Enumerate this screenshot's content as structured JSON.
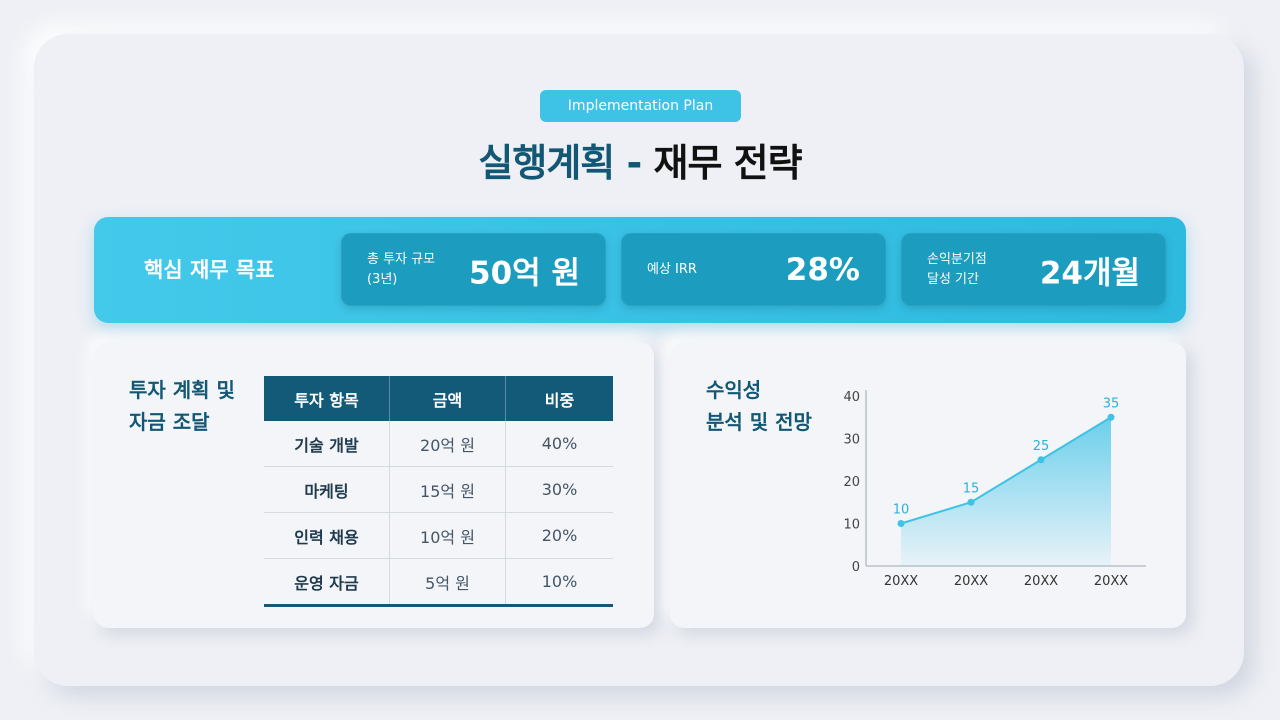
{
  "badge": "Implementation Plan",
  "title": {
    "part1": "실행계획 -",
    "part2": "재무 전략"
  },
  "kpi": {
    "heading": "핵심 재무 목표",
    "cards": [
      {
        "label_line1": "총 투자 규모",
        "label_line2": "(3년)",
        "value": "50억 원"
      },
      {
        "label_line1": "예상 IRR",
        "label_line2": "",
        "value": "28%"
      },
      {
        "label_line1": "손익분기점",
        "label_line2": "달성 기간",
        "value": "24개월"
      }
    ]
  },
  "investment": {
    "heading_line1": "투자 계획 및",
    "heading_line2": "자금 조달",
    "table": {
      "headers": [
        "투자 항목",
        "금액",
        "비중"
      ],
      "rows": [
        [
          "기술 개발",
          "20억 원",
          "40%"
        ],
        [
          "마케팅",
          "15억 원",
          "30%"
        ],
        [
          "인력 채용",
          "10억 원",
          "20%"
        ],
        [
          "운영 자금",
          "5억 원",
          "10%"
        ]
      ]
    }
  },
  "profit": {
    "heading_line1": "수익성",
    "heading_line2": "분석 및 전망"
  },
  "chart_data": {
    "type": "area",
    "categories": [
      "20XX",
      "20XX",
      "20XX",
      "20XX"
    ],
    "values": [
      10,
      15,
      25,
      35
    ],
    "data_labels": [
      "10",
      "15",
      "25",
      "35"
    ],
    "y_ticks": [
      "0",
      "10",
      "20",
      "30",
      "40"
    ],
    "ylim": [
      0,
      40
    ],
    "color": "#3ec3e6",
    "grid": false
  }
}
